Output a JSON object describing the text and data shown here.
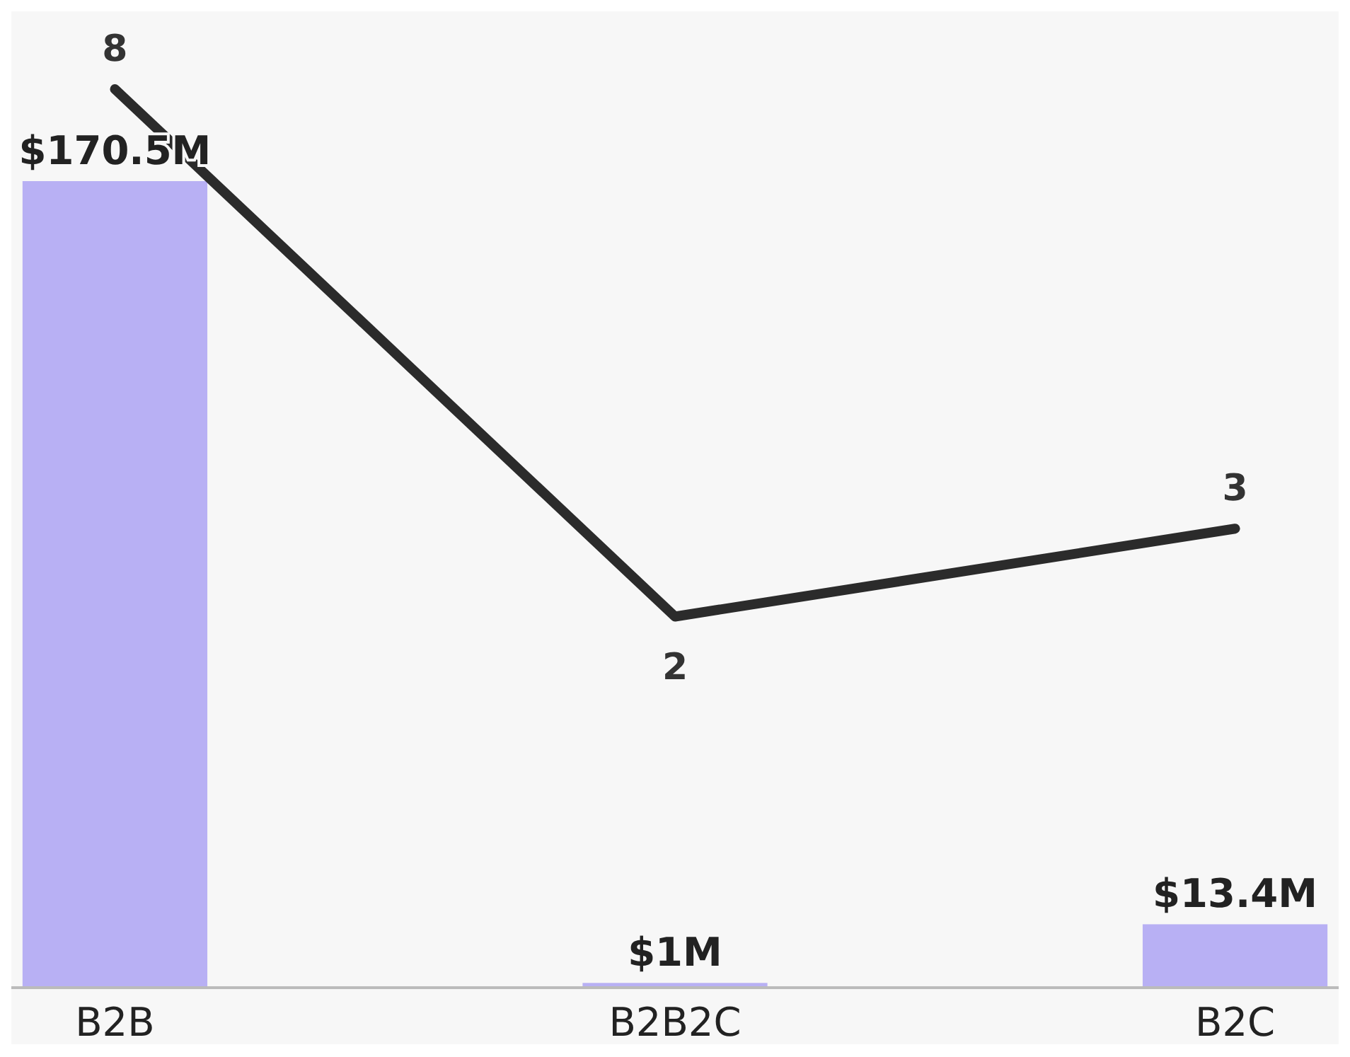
{
  "chart_data": {
    "type": "bar",
    "categories": [
      "B2B",
      "B2B2C",
      "B2C"
    ],
    "data_labels": true,
    "series": [
      {
        "color": "#b8b0f4",
        "values": [
          170.5,
          1,
          13.4
        ],
        "value_labels": [
          "$170.5M",
          "$1M",
          "$13.4M"
        ]
      },
      {
        "type": "line",
        "axis": "y2",
        "color": "#2b2b2b",
        "values": [
          8,
          2,
          3
        ]
      }
    ]
  }
}
